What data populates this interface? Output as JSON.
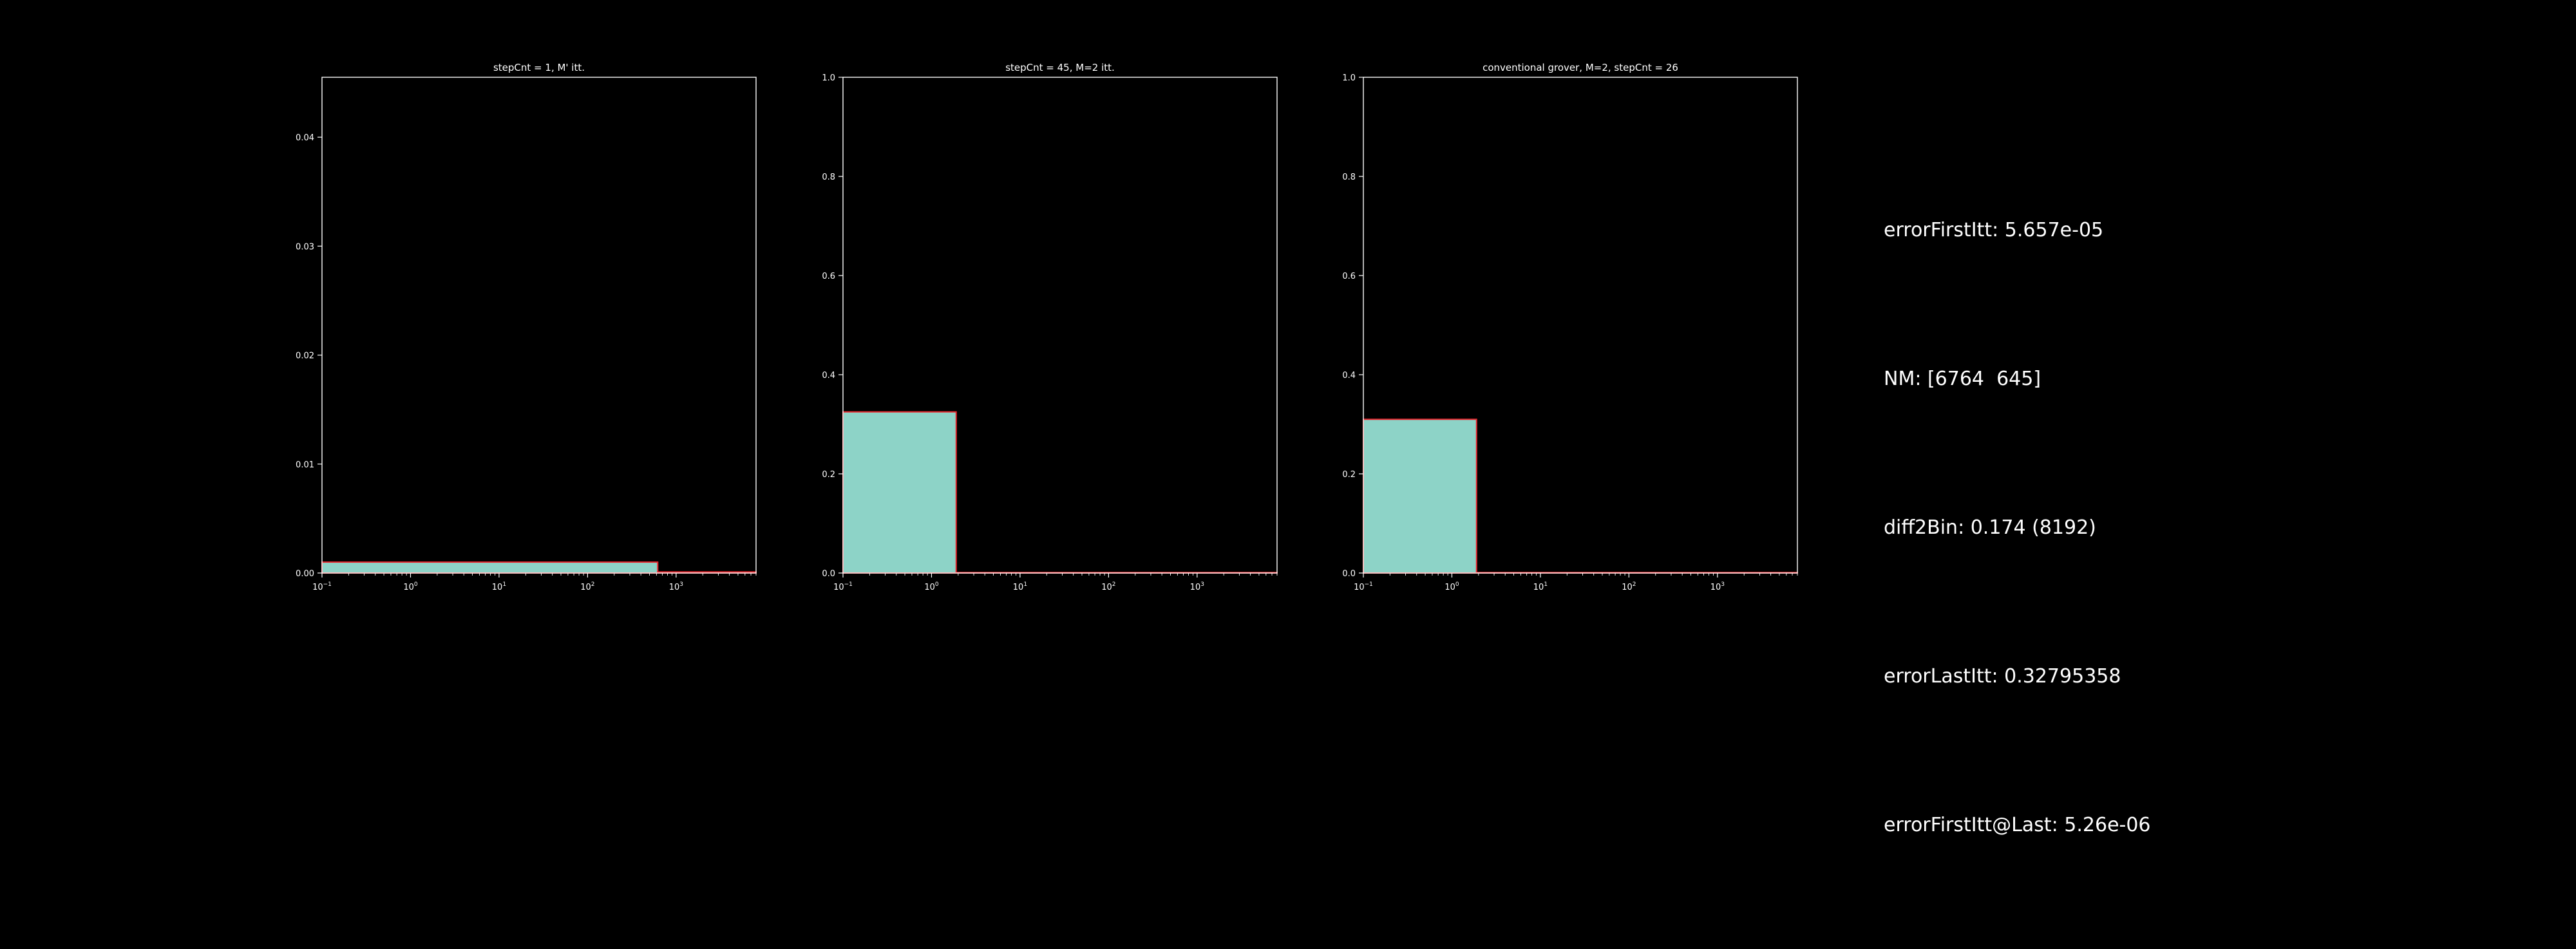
{
  "colors": {
    "background": "#000000",
    "axes": "#ffffff",
    "bar_fill": "#8dd3c7",
    "bar_edge": "#e8282f",
    "text": "#ffffff"
  },
  "chart_data": [
    {
      "type": "bar",
      "title": "stepCnt = 1, M' itt.",
      "xscale": "log",
      "xlim": [
        0.1,
        8000
      ],
      "ylim": [
        0,
        0.0455
      ],
      "xticks": [
        0.1,
        1,
        10,
        100,
        1000
      ],
      "xtick_labels": [
        [
          "10",
          "−1"
        ],
        [
          "10",
          "0"
        ],
        [
          "10",
          "1"
        ],
        [
          "10",
          "2"
        ],
        [
          "10",
          "3"
        ]
      ],
      "yticks": [
        0,
        0.01,
        0.02,
        0.03,
        0.04
      ],
      "ytick_labels": [
        "0.00",
        "0.01",
        "0.02",
        "0.03",
        "0.04"
      ],
      "bins": [
        {
          "x0": 0.1,
          "x1": 620,
          "value": 0.001
        },
        {
          "x0": 620,
          "x1": 8000,
          "value": 0.0001
        }
      ]
    },
    {
      "type": "bar",
      "title": "stepCnt = 45, M=2 itt.",
      "xscale": "log",
      "xlim": [
        0.1,
        8000
      ],
      "ylim": [
        0,
        1.0
      ],
      "xticks": [
        0.1,
        1,
        10,
        100,
        1000
      ],
      "xtick_labels": [
        [
          "10",
          "−1"
        ],
        [
          "10",
          "0"
        ],
        [
          "10",
          "1"
        ],
        [
          "10",
          "2"
        ],
        [
          "10",
          "3"
        ]
      ],
      "yticks": [
        0,
        0.2,
        0.4,
        0.6,
        0.8,
        1.0
      ],
      "ytick_labels": [
        "0.0",
        "0.2",
        "0.4",
        "0.6",
        "0.8",
        "1.0"
      ],
      "bins": [
        {
          "x0": 0.1,
          "x1": 1.9,
          "value": 0.325
        },
        {
          "x0": 1.9,
          "x1": 8000,
          "value": 0.001
        }
      ]
    },
    {
      "type": "bar",
      "title": "conventional grover, M=2, stepCnt = 26",
      "xscale": "log",
      "xlim": [
        0.1,
        8000
      ],
      "ylim": [
        0,
        1.0
      ],
      "xticks": [
        0.1,
        1,
        10,
        100,
        1000
      ],
      "xtick_labels": [
        [
          "10",
          "−1"
        ],
        [
          "10",
          "0"
        ],
        [
          "10",
          "1"
        ],
        [
          "10",
          "2"
        ],
        [
          "10",
          "3"
        ]
      ],
      "yticks": [
        0,
        0.2,
        0.4,
        0.6,
        0.8,
        1.0
      ],
      "ytick_labels": [
        "0.0",
        "0.2",
        "0.4",
        "0.6",
        "0.8",
        "1.0"
      ],
      "bins": [
        {
          "x0": 0.1,
          "x1": 1.9,
          "value": 0.31
        },
        {
          "x0": 1.9,
          "x1": 8000,
          "value": 0.001
        }
      ]
    }
  ],
  "info": {
    "error_first_itt": "errorFirstItt: 5.657e-05",
    "nm": "NM: [6764  645]",
    "diff2bin": "diff2Bin: 0.174 (8192)",
    "error_last_itt": "errorLastItt: 0.32795358",
    "error_first_itt_at_last": "errorFirstItt@Last: 5.26e-06"
  }
}
